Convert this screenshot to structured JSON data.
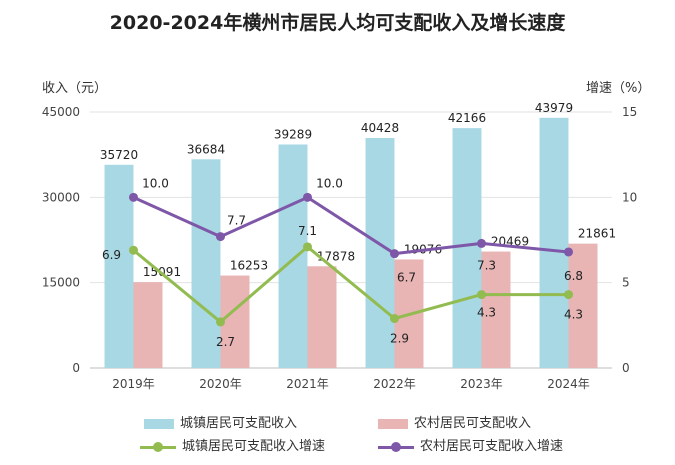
{
  "chart_data": {
    "type": "bar+line",
    "title": "2020-2024年横州市居民人均可支配收入及增长速度",
    "ylabel_left": "收入（元）",
    "ylabel_right": "增速（%）",
    "categories": [
      "2019年",
      "2020年",
      "2021年",
      "2022年",
      "2023年",
      "2024年"
    ],
    "left_axis": {
      "ylim": [
        0,
        45000
      ],
      "ticks": [
        "0",
        "15000",
        "30000",
        "45000"
      ],
      "tick_values": [
        0,
        15000,
        30000,
        45000
      ]
    },
    "right_axis": {
      "ylim": [
        0,
        15
      ],
      "ticks": [
        "0",
        "5",
        "10",
        "15"
      ],
      "tick_values": [
        0,
        5,
        10,
        15
      ]
    },
    "series": [
      {
        "name": "城镇居民可支配收入",
        "type": "bar",
        "axis": "left",
        "color": "#A8D8E4",
        "values": [
          35720,
          36684,
          39289,
          40428,
          42166,
          43979
        ],
        "labels": [
          "35720",
          "36684",
          "39289",
          "40428",
          "42166",
          "43979"
        ]
      },
      {
        "name": "农村居民可支配收入",
        "type": "bar",
        "axis": "left",
        "color": "#E8B4B4",
        "values": [
          15091,
          16253,
          17878,
          19076,
          20469,
          21861
        ],
        "labels": [
          "15091",
          "16253",
          "17878",
          "19076",
          "20469",
          "21861"
        ]
      },
      {
        "name": "城镇居民可支配收入增速",
        "type": "line",
        "axis": "right",
        "color": "#92BB50",
        "values": [
          6.9,
          2.7,
          7.1,
          2.9,
          4.3,
          4.3
        ],
        "labels": [
          "6.9",
          "2.7",
          "7.1",
          "2.9",
          "4.3",
          "4.3"
        ]
      },
      {
        "name": "农村居民可支配收入增速",
        "type": "line",
        "axis": "right",
        "color": "#7E57A8",
        "values": [
          10.0,
          7.7,
          10.0,
          6.7,
          7.3,
          6.8
        ],
        "labels": [
          "10.0",
          "7.7",
          "10.0",
          "6.7",
          "7.3",
          "6.8"
        ]
      }
    ],
    "legend": {
      "position": "bottom"
    }
  }
}
